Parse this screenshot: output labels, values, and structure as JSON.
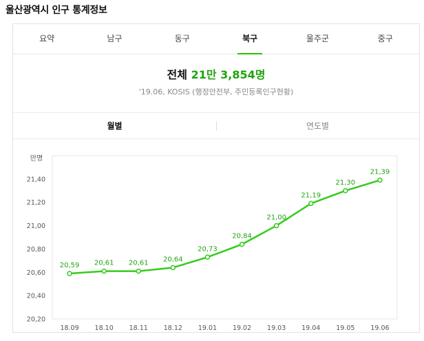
{
  "page": {
    "title": "울산광역시 인구 통계정보"
  },
  "tabs": [
    {
      "label": "요약",
      "active": false
    },
    {
      "label": "남구",
      "active": false
    },
    {
      "label": "동구",
      "active": false
    },
    {
      "label": "북구",
      "active": true
    },
    {
      "label": "울주군",
      "active": false
    },
    {
      "label": "중구",
      "active": false
    }
  ],
  "summary": {
    "total_label": "전체",
    "total_value": "21만 3,854명",
    "source": "'19.06, KOSIS (행정안전부, 주민등록인구현황)"
  },
  "subtabs": [
    {
      "label": "월별",
      "active": true
    },
    {
      "label": "연도별",
      "active": false
    }
  ],
  "colors": {
    "accent": "#1ec800",
    "value_green": "#1ea40f",
    "line_green": "#33cc1a"
  },
  "chart_data": {
    "type": "line",
    "ylabel": "만명",
    "categories": [
      "18.09",
      "18.10",
      "18.11",
      "18.12",
      "19.01",
      "19.02",
      "19.03",
      "19.04",
      "19.05",
      "19.06"
    ],
    "values": [
      20.59,
      20.61,
      20.61,
      20.64,
      20.73,
      20.84,
      21.0,
      21.19,
      21.3,
      21.39
    ],
    "value_labels": [
      "20,59",
      "20,61",
      "20,61",
      "20,64",
      "20,73",
      "20,84",
      "21,00",
      "21,19",
      "21,30",
      "21,39"
    ],
    "yticks": [
      20.2,
      20.4,
      20.6,
      20.8,
      21.0,
      21.2,
      21.4
    ],
    "ytick_labels": [
      "20,20",
      "20,40",
      "20,60",
      "20,80",
      "21,00",
      "21,20",
      "21,40"
    ],
    "ylim": [
      20.2,
      21.6
    ],
    "grid": false
  }
}
